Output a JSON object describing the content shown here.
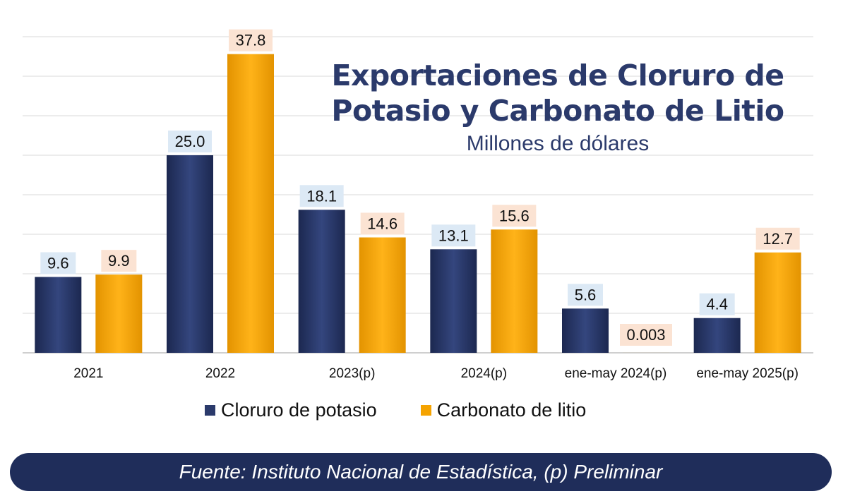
{
  "chart_data": {
    "type": "bar",
    "title": "Exportaciones de Cloruro de Potasio y Carbonato de Litio",
    "subtitle": "Millones de dólares",
    "categories": [
      "2021",
      "2022",
      "2023(p)",
      "2024(p)",
      "ene-may 2024(p)",
      "ene-may 2025(p)"
    ],
    "series": [
      {
        "name": "Cloruro de potasio",
        "color": "#2b3a6b",
        "label_bg": "#dce9f5",
        "values": [
          9.6,
          25.0,
          18.1,
          13.1,
          5.6,
          4.4
        ],
        "labels": [
          "9.6",
          "25.0",
          "18.1",
          "13.1",
          "5.6",
          "4.4"
        ]
      },
      {
        "name": "Carbonato de litio",
        "color": "#f5a300",
        "label_bg": "#fbe3d3",
        "values": [
          9.9,
          37.8,
          14.6,
          15.6,
          0.003,
          12.7
        ],
        "labels": [
          "9.9",
          "37.8",
          "14.6",
          "15.6",
          "0.003",
          "12.7"
        ]
      }
    ],
    "ylim": [
      0,
      40
    ],
    "grid": true,
    "legend_position": "bottom"
  },
  "title_lines": [
    "Exportaciones de Cloruro de",
    "Potasio y Carbonato de Litio"
  ],
  "footer": "Fuente: Instituto Nacional de Estadística, (p) Preliminar"
}
